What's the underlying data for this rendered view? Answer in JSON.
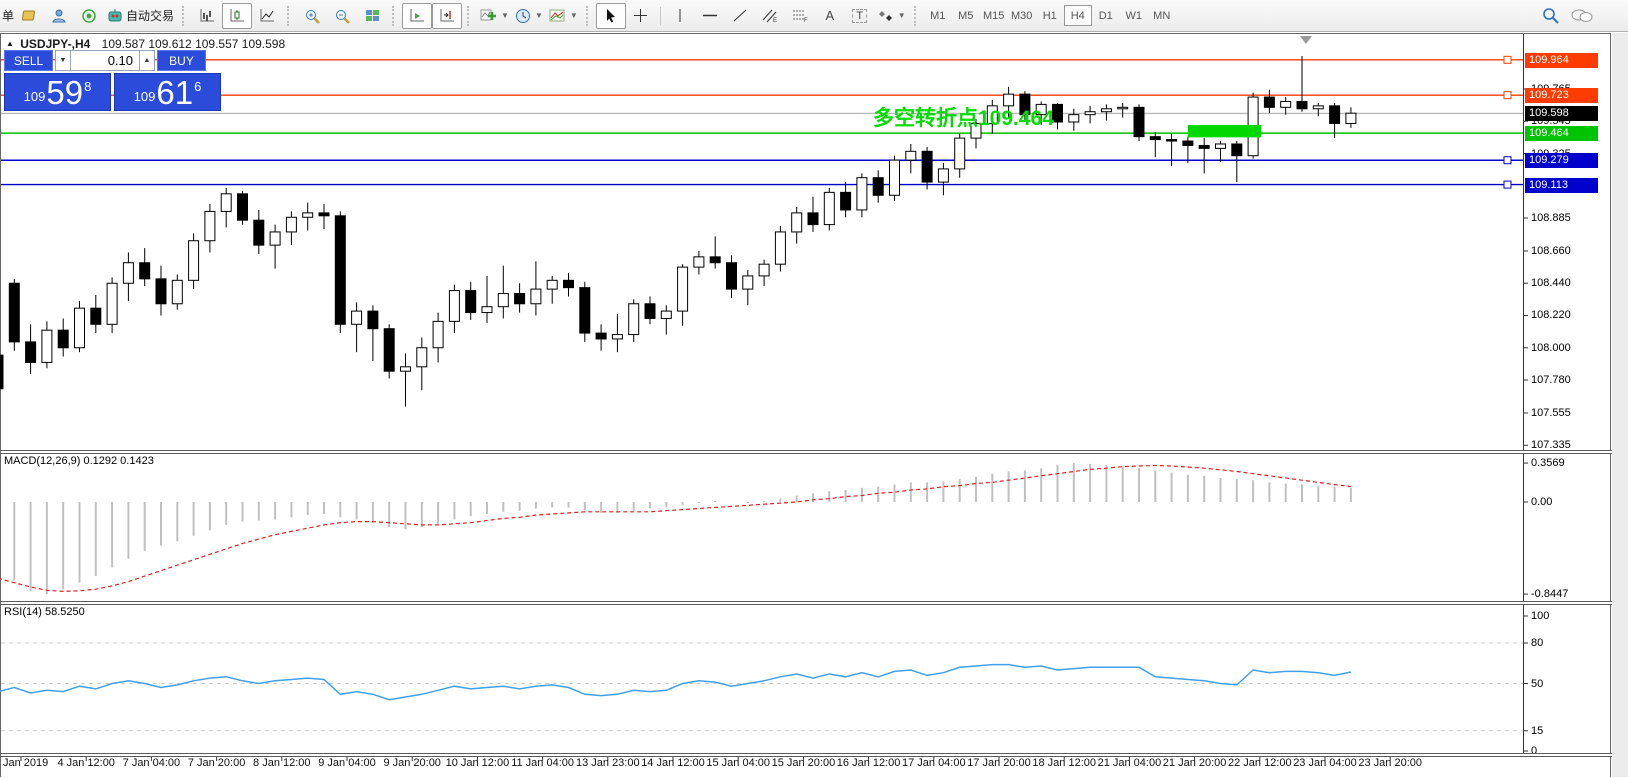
{
  "toolbar": {
    "order_label": "单",
    "autotrade_label": "自动交易",
    "text_tool_label": "A",
    "label_tool_label": "T",
    "timeframes": [
      "M1",
      "M5",
      "M15",
      "M30",
      "H1",
      "H4",
      "D1",
      "W1",
      "MN"
    ],
    "active_timeframe": "H4"
  },
  "chart": {
    "collapse_marker": "▲",
    "symbol_period": "USDJPY-,H4",
    "ohlc_text": "109.587 109.612 109.557 109.598",
    "one_click": {
      "sell_label": "SELL",
      "buy_label": "BUY",
      "volume": "0.10",
      "sell_price_prefix": "109",
      "sell_price_big": "59",
      "sell_price_sup": "8",
      "buy_price_prefix": "109",
      "buy_price_big": "61",
      "buy_price_sup": "6"
    },
    "annotation": {
      "text": "多空转折点109.464",
      "color": "#00dc00"
    }
  },
  "chart_data": {
    "type": "candlestick",
    "title": "USDJPY-,H4",
    "x_labels": [
      "3 Jan 2019",
      "4 Jan 12:00",
      "7 Jan 04:00",
      "7 Jan 20:00",
      "8 Jan 12:00",
      "9 Jan 04:00",
      "9 Jan 20:00",
      "10 Jan 12:00",
      "11 Jan 04:00",
      "13 Jan 23:00",
      "14 Jan 12:00",
      "15 Jan 04:00",
      "15 Jan 20:00",
      "16 Jan 12:00",
      "17 Jan 04:00",
      "17 Jan 20:00",
      "18 Jan 12:00",
      "21 Jan 04:00",
      "21 Jan 20:00",
      "22 Jan 12:00",
      "23 Jan 04:00",
      "23 Jan 20:00"
    ],
    "price_ticks": [
      "109.765",
      "109.545",
      "109.325",
      "108.885",
      "108.660",
      "108.440",
      "108.220",
      "108.000",
      "107.780",
      "107.555",
      "107.335"
    ],
    "candles": [
      [
        107.95,
        108.0,
        107.65,
        107.72
      ],
      [
        108.44,
        108.47,
        107.98,
        108.04
      ],
      [
        108.04,
        108.16,
        107.82,
        107.9
      ],
      [
        107.9,
        108.18,
        107.86,
        108.12
      ],
      [
        108.12,
        108.2,
        107.94,
        108.0
      ],
      [
        108.0,
        108.32,
        107.97,
        108.27
      ],
      [
        108.27,
        108.36,
        108.1,
        108.16
      ],
      [
        108.16,
        108.48,
        108.1,
        108.44
      ],
      [
        108.44,
        108.65,
        108.32,
        108.58
      ],
      [
        108.58,
        108.68,
        108.42,
        108.47
      ],
      [
        108.47,
        108.56,
        108.22,
        108.3
      ],
      [
        108.3,
        108.5,
        108.26,
        108.46
      ],
      [
        108.46,
        108.78,
        108.4,
        108.73
      ],
      [
        108.73,
        108.98,
        108.65,
        108.93
      ],
      [
        108.93,
        109.09,
        108.82,
        109.05
      ],
      [
        109.05,
        109.07,
        108.84,
        108.87
      ],
      [
        108.87,
        108.94,
        108.64,
        108.7
      ],
      [
        108.7,
        108.84,
        108.54,
        108.79
      ],
      [
        108.79,
        108.93,
        108.7,
        108.89
      ],
      [
        108.89,
        108.99,
        108.8,
        108.92
      ],
      [
        108.92,
        108.98,
        108.81,
        108.9
      ],
      [
        108.9,
        108.93,
        108.1,
        108.16
      ],
      [
        108.16,
        108.31,
        107.97,
        108.25
      ],
      [
        108.25,
        108.29,
        107.91,
        108.13
      ],
      [
        108.13,
        108.16,
        107.79,
        107.84
      ],
      [
        107.84,
        107.96,
        107.6,
        107.87
      ],
      [
        107.87,
        108.07,
        107.71,
        108.0
      ],
      [
        108.0,
        108.24,
        107.9,
        108.18
      ],
      [
        108.18,
        108.43,
        108.1,
        108.39
      ],
      [
        108.39,
        108.45,
        108.19,
        108.24
      ],
      [
        108.24,
        108.49,
        108.17,
        108.28
      ],
      [
        108.28,
        108.56,
        108.2,
        108.37
      ],
      [
        108.37,
        108.44,
        108.24,
        108.3
      ],
      [
        108.3,
        108.59,
        108.22,
        108.4
      ],
      [
        108.4,
        108.49,
        108.3,
        108.46
      ],
      [
        108.46,
        108.51,
        108.35,
        108.41
      ],
      [
        108.41,
        108.45,
        108.04,
        108.1
      ],
      [
        108.1,
        108.16,
        107.98,
        108.06
      ],
      [
        108.06,
        108.23,
        107.97,
        108.09
      ],
      [
        108.09,
        108.33,
        108.04,
        108.3
      ],
      [
        108.3,
        108.35,
        108.16,
        108.2
      ],
      [
        108.2,
        108.29,
        108.09,
        108.25
      ],
      [
        108.25,
        108.57,
        108.15,
        108.55
      ],
      [
        108.55,
        108.66,
        108.5,
        108.62
      ],
      [
        108.62,
        108.76,
        108.54,
        108.58
      ],
      [
        108.58,
        108.63,
        108.34,
        108.4
      ],
      [
        108.4,
        108.53,
        108.29,
        108.49
      ],
      [
        108.49,
        108.6,
        108.42,
        108.57
      ],
      [
        108.57,
        108.83,
        108.52,
        108.79
      ],
      [
        108.79,
        108.96,
        108.71,
        108.92
      ],
      [
        108.92,
        109.03,
        108.79,
        108.84
      ],
      [
        108.84,
        109.09,
        108.8,
        109.06
      ],
      [
        109.06,
        109.13,
        108.89,
        108.94
      ],
      [
        108.94,
        109.19,
        108.89,
        109.16
      ],
      [
        109.16,
        109.21,
        108.99,
        109.04
      ],
      [
        109.04,
        109.31,
        109.0,
        109.28
      ],
      [
        109.28,
        109.39,
        109.19,
        109.34
      ],
      [
        109.34,
        109.37,
        109.08,
        109.13
      ],
      [
        109.13,
        109.26,
        109.04,
        109.22
      ],
      [
        109.22,
        109.46,
        109.16,
        109.43
      ],
      [
        109.43,
        109.56,
        109.36,
        109.53
      ],
      [
        109.53,
        109.69,
        109.46,
        109.65
      ],
      [
        109.65,
        109.78,
        109.57,
        109.73
      ],
      [
        109.73,
        109.75,
        109.54,
        109.59
      ],
      [
        109.59,
        109.68,
        109.52,
        109.66
      ],
      [
        109.66,
        109.67,
        109.49,
        109.54
      ],
      [
        109.54,
        109.63,
        109.48,
        109.59
      ],
      [
        109.59,
        109.65,
        109.53,
        109.61
      ],
      [
        109.61,
        109.66,
        109.55,
        109.63
      ],
      [
        109.63,
        109.67,
        109.57,
        109.64
      ],
      [
        109.64,
        109.66,
        109.41,
        109.44
      ],
      [
        109.44,
        109.47,
        109.3,
        109.42
      ],
      [
        109.42,
        109.46,
        109.24,
        109.41
      ],
      [
        109.41,
        109.44,
        109.26,
        109.38
      ],
      [
        109.38,
        109.43,
        109.19,
        109.36
      ],
      [
        109.36,
        109.41,
        109.27,
        109.39
      ],
      [
        109.39,
        109.41,
        109.13,
        109.31
      ],
      [
        109.31,
        109.74,
        109.29,
        109.71
      ],
      [
        109.71,
        109.76,
        109.6,
        109.64
      ],
      [
        109.64,
        109.71,
        109.59,
        109.68
      ],
      [
        109.68,
        109.99,
        109.61,
        109.63
      ],
      [
        109.63,
        109.67,
        109.58,
        109.65
      ],
      [
        109.65,
        109.67,
        109.43,
        109.53
      ],
      [
        109.53,
        109.64,
        109.5,
        109.6
      ]
    ],
    "levels": [
      {
        "price": 109.964,
        "color": "#ff3c00",
        "label": "109.964",
        "label_bg": "#ff3c00",
        "marker": true
      },
      {
        "price": 109.723,
        "color": "#ff3c00",
        "label": "109.723",
        "label_bg": "#ff3c00",
        "marker": true
      },
      {
        "price": 109.598,
        "color": "#b9b9b9",
        "label": "109.598",
        "label_bg": "#000000",
        "marker": false
      },
      {
        "price": 109.464,
        "color": "#00c000",
        "label": "109.464",
        "label_bg": "#00c400",
        "marker": false
      },
      {
        "price": 109.279,
        "color": "#0000cc",
        "label": "109.279",
        "label_bg": "#0000cc",
        "marker": true
      },
      {
        "price": 109.113,
        "color": "#0000cc",
        "label": "109.113",
        "label_bg": "#0000cc",
        "marker": true
      }
    ],
    "zone": {
      "from_bar": 73,
      "to_bar": 77.5,
      "price_top": 109.52,
      "price_bottom": 109.435,
      "color": "#00d800"
    },
    "macd": {
      "label": "MACD(12,26,9) 0.1292 0.1423",
      "axis_ticks": [
        0.3569,
        0.0,
        -0.8447
      ],
      "axis_tick_labels": [
        "0.3569",
        "0.00",
        "-0.8447"
      ],
      "histogram_color": "#c0c0c0",
      "signal_color": "#e02020",
      "histogram": [
        -0.6,
        -0.72,
        -0.82,
        -0.845,
        -0.8,
        -0.74,
        -0.68,
        -0.6,
        -0.52,
        -0.45,
        -0.4,
        -0.36,
        -0.31,
        -0.26,
        -0.21,
        -0.18,
        -0.17,
        -0.16,
        -0.14,
        -0.12,
        -0.11,
        -0.14,
        -0.16,
        -0.19,
        -0.23,
        -0.25,
        -0.23,
        -0.2,
        -0.16,
        -0.13,
        -0.11,
        -0.09,
        -0.08,
        -0.06,
        -0.05,
        -0.05,
        -0.08,
        -0.1,
        -0.1,
        -0.08,
        -0.06,
        -0.05,
        -0.03,
        -0.01,
        0.01,
        0.0,
        -0.01,
        0.01,
        0.03,
        0.06,
        0.08,
        0.1,
        0.11,
        0.13,
        0.14,
        0.16,
        0.18,
        0.18,
        0.19,
        0.21,
        0.23,
        0.26,
        0.28,
        0.29,
        0.31,
        0.34,
        0.357,
        0.35,
        0.34,
        0.33,
        0.31,
        0.29,
        0.27,
        0.25,
        0.24,
        0.22,
        0.21,
        0.2,
        0.18,
        0.17,
        0.16,
        0.15,
        0.14,
        0.129
      ],
      "signal": [
        -0.7,
        -0.74,
        -0.78,
        -0.81,
        -0.82,
        -0.815,
        -0.8,
        -0.77,
        -0.73,
        -0.68,
        -0.63,
        -0.58,
        -0.53,
        -0.48,
        -0.43,
        -0.38,
        -0.34,
        -0.3,
        -0.27,
        -0.24,
        -0.21,
        -0.19,
        -0.18,
        -0.18,
        -0.19,
        -0.2,
        -0.21,
        -0.21,
        -0.2,
        -0.19,
        -0.17,
        -0.15,
        -0.14,
        -0.12,
        -0.11,
        -0.1,
        -0.09,
        -0.09,
        -0.09,
        -0.09,
        -0.09,
        -0.08,
        -0.07,
        -0.06,
        -0.05,
        -0.04,
        -0.03,
        -0.02,
        -0.01,
        0.0,
        0.02,
        0.03,
        0.05,
        0.06,
        0.08,
        0.09,
        0.11,
        0.12,
        0.14,
        0.15,
        0.17,
        0.18,
        0.2,
        0.22,
        0.24,
        0.26,
        0.28,
        0.3,
        0.31,
        0.325,
        0.33,
        0.335,
        0.33,
        0.32,
        0.31,
        0.295,
        0.28,
        0.26,
        0.24,
        0.22,
        0.2,
        0.18,
        0.16,
        0.142
      ]
    },
    "rsi": {
      "label": "RSI(14) 58.5250",
      "axis_ticks": [
        100,
        80,
        50,
        15,
        0
      ],
      "level_lines": [
        80,
        50,
        15
      ],
      "line_color": "#42a0e8",
      "values": [
        44,
        47,
        43,
        45,
        44,
        48,
        46,
        50,
        52,
        50,
        47,
        49,
        52,
        54,
        55,
        52,
        50,
        52,
        53,
        54,
        53,
        42,
        44,
        42,
        38,
        40,
        42,
        45,
        48,
        46,
        47,
        48,
        46,
        48,
        49,
        47,
        42,
        41,
        42,
        45,
        44,
        45,
        50,
        52,
        51,
        48,
        50,
        52,
        55,
        57,
        54,
        57,
        55,
        58,
        55,
        59,
        60,
        56,
        58,
        62,
        63,
        64,
        64,
        62,
        63,
        60,
        61,
        62,
        62,
        62,
        62,
        55,
        54,
        53,
        52,
        50,
        49,
        60,
        58,
        59,
        59,
        58,
        56,
        58.5
      ]
    }
  }
}
